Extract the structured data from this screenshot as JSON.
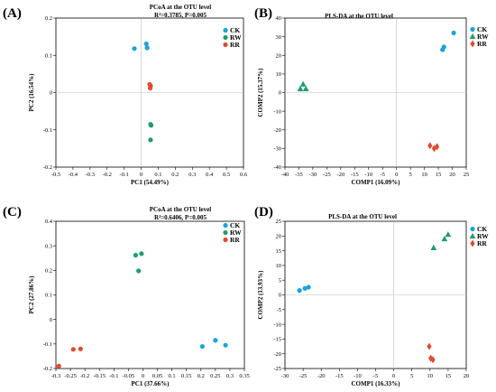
{
  "colors": {
    "CK": "#1aa3dc",
    "RW": "#1e9e6b",
    "RR": "#e4492f",
    "axis": "#000000",
    "zero_line": "#bfbfbf"
  },
  "legend": [
    "CK",
    "RW",
    "RR"
  ],
  "chart_data": [
    {
      "panel": "(A)",
      "type": "scatter",
      "title": "PCoA at the OTU level",
      "stat": "R²=0.3785, P=0.005",
      "xlabel": "PC1 (54.49%)",
      "ylabel": "PC2 (16.54%)",
      "xlim": [
        -0.5,
        0.6
      ],
      "ylim": [
        -0.2,
        0.2
      ],
      "xticks": [
        -0.5,
        -0.4,
        -0.3,
        -0.2,
        -0.1,
        0,
        0.1,
        0.2,
        0.3,
        0.4,
        0.5,
        0.6
      ],
      "xticklabels": [
        "-0.5",
        "-0.4",
        "-0.3",
        "-0.2",
        "-0.1",
        "0",
        "0.1",
        "0.2",
        "0.3",
        "0.4",
        "0.5",
        "0.6"
      ],
      "yticks": [
        -0.2,
        -0.1,
        0,
        0.1,
        0.2
      ],
      "yticklabels": [
        "-0.2",
        "-0.1",
        "0",
        "0.1",
        "0.2"
      ],
      "grid": false,
      "zero_lines": true,
      "legend_position": "top-right",
      "markers": "circle",
      "series": [
        {
          "name": "CK",
          "points": [
            [
              -0.04,
              0.118
            ],
            [
              0.03,
              0.131
            ],
            [
              0.035,
              0.12
            ]
          ]
        },
        {
          "name": "RW",
          "points": [
            [
              0.055,
              -0.085
            ],
            [
              0.058,
              -0.088
            ],
            [
              0.055,
              -0.127
            ]
          ]
        },
        {
          "name": "RR",
          "points": [
            [
              0.05,
              0.022
            ],
            [
              0.055,
              0.018
            ],
            [
              0.053,
              0.012
            ]
          ]
        }
      ]
    },
    {
      "panel": "(B)",
      "type": "scatter",
      "title": "PLS-DA at the OTU level",
      "xlabel": "COMP1 (16.09%)",
      "ylabel": "COMP2 (15.37%)",
      "xlim": [
        -40,
        25
      ],
      "ylim": [
        -40,
        40
      ],
      "xticks": [
        -40,
        -35,
        -30,
        -25,
        -20,
        -15,
        -10,
        -5,
        0,
        5,
        10,
        15,
        20,
        25
      ],
      "xticklabels": [
        "-40",
        "-35",
        "-30",
        "-25",
        "-20",
        "-15",
        "-10",
        "-5",
        "0",
        "5",
        "10",
        "15",
        "20",
        "25"
      ],
      "yticks": [
        -40,
        -30,
        -20,
        -10,
        0,
        10,
        20,
        30,
        40
      ],
      "yticklabels": [
        "-40",
        "-30",
        "-20",
        "-10",
        "0",
        "10",
        "20",
        "30",
        "40"
      ],
      "grid": false,
      "zero_lines": true,
      "legend_position": "top-right",
      "markers": "mixed",
      "series": [
        {
          "name": "CK",
          "marker": "circle",
          "points": [
            [
              16.5,
              23
            ],
            [
              17,
              24.5
            ],
            [
              20.5,
              32
            ]
          ]
        },
        {
          "name": "RW",
          "marker": "triangle",
          "points": [
            [
              -34.5,
              2
            ],
            [
              -33.5,
              4.5
            ],
            [
              -32.5,
              2
            ]
          ]
        },
        {
          "name": "RR",
          "marker": "diamond",
          "points": [
            [
              12,
              -28.5
            ],
            [
              13.5,
              -30
            ],
            [
              14.5,
              -29
            ]
          ]
        }
      ]
    },
    {
      "panel": "(C)",
      "type": "scatter",
      "title": "PCoA at the OTU level",
      "stat": "R²=0.6406, P=0.005",
      "xlabel": "PC1 (37.66%)",
      "ylabel": "PC2 (27.86%)",
      "xlim": [
        -0.3,
        0.35
      ],
      "ylim": [
        -0.2,
        0.4
      ],
      "xticks": [
        -0.3,
        -0.25,
        -0.2,
        -0.15,
        -0.1,
        -0.05,
        0,
        0.05,
        0.1,
        0.15,
        0.2,
        0.25,
        0.3,
        0.35
      ],
      "xticklabels": [
        "-0.3",
        "-0.25",
        "-0.2",
        "-0.15",
        "-0.1",
        "-0.05",
        "0",
        "0.05",
        "0.1",
        "0.15",
        "0.2",
        "0.25",
        "0.3",
        "0.35"
      ],
      "yticks": [
        -0.2,
        -0.1,
        0,
        0.1,
        0.2,
        0.3,
        0.4
      ],
      "yticklabels": [
        "-0.2",
        "-0.1",
        "0",
        "0.1",
        "0.2",
        "0.3",
        "0.4"
      ],
      "grid": false,
      "zero_lines": false,
      "legend_position": "top-right",
      "markers": "circle",
      "series": [
        {
          "name": "CK",
          "points": [
            [
              0.205,
              -0.11
            ],
            [
              0.25,
              -0.085
            ],
            [
              0.285,
              -0.105
            ]
          ]
        },
        {
          "name": "RW",
          "points": [
            [
              -0.025,
              0.262
            ],
            [
              -0.015,
              0.198
            ],
            [
              -0.005,
              0.268
            ]
          ]
        },
        {
          "name": "RR",
          "points": [
            [
              -0.29,
              -0.19
            ],
            [
              -0.24,
              -0.122
            ],
            [
              -0.215,
              -0.12
            ]
          ]
        }
      ]
    },
    {
      "panel": "(D)",
      "type": "scatter",
      "title": "PLS-DA at the OTU level",
      "xlabel": "COMP1 (16.33%)",
      "ylabel": "COMP2 (13.93%)",
      "xlim": [
        -30,
        20
      ],
      "ylim": [
        -25,
        25
      ],
      "xticks": [
        -30,
        -25,
        -20,
        -15,
        -10,
        -5,
        0,
        5,
        10,
        15,
        20
      ],
      "xticklabels": [
        "-30",
        "-25",
        "-20",
        "-15",
        "-10",
        "-5",
        "0",
        "5",
        "10",
        "15",
        "20"
      ],
      "yticks": [
        -25,
        -20,
        -15,
        -10,
        -5,
        0,
        5,
        10,
        15,
        20,
        25
      ],
      "yticklabels": [
        "-25",
        "-20",
        "-15",
        "-10",
        "-5",
        "0",
        "5",
        "10",
        "15",
        "20",
        "25"
      ],
      "grid": false,
      "zero_lines": true,
      "legend_position": "top-right",
      "markers": "mixed",
      "series": [
        {
          "name": "CK",
          "marker": "circle",
          "points": [
            [
              -26,
              1.5
            ],
            [
              -24.5,
              2.2
            ],
            [
              -23.5,
              2.6
            ]
          ]
        },
        {
          "name": "RW",
          "marker": "triangle",
          "points": [
            [
              11,
              16
            ],
            [
              14,
              19
            ],
            [
              15,
              20.5
            ]
          ]
        },
        {
          "name": "RR",
          "marker": "diamond",
          "points": [
            [
              9.8,
              -17.5
            ],
            [
              10.2,
              -21.5
            ],
            [
              10.8,
              -22
            ]
          ]
        }
      ]
    }
  ]
}
